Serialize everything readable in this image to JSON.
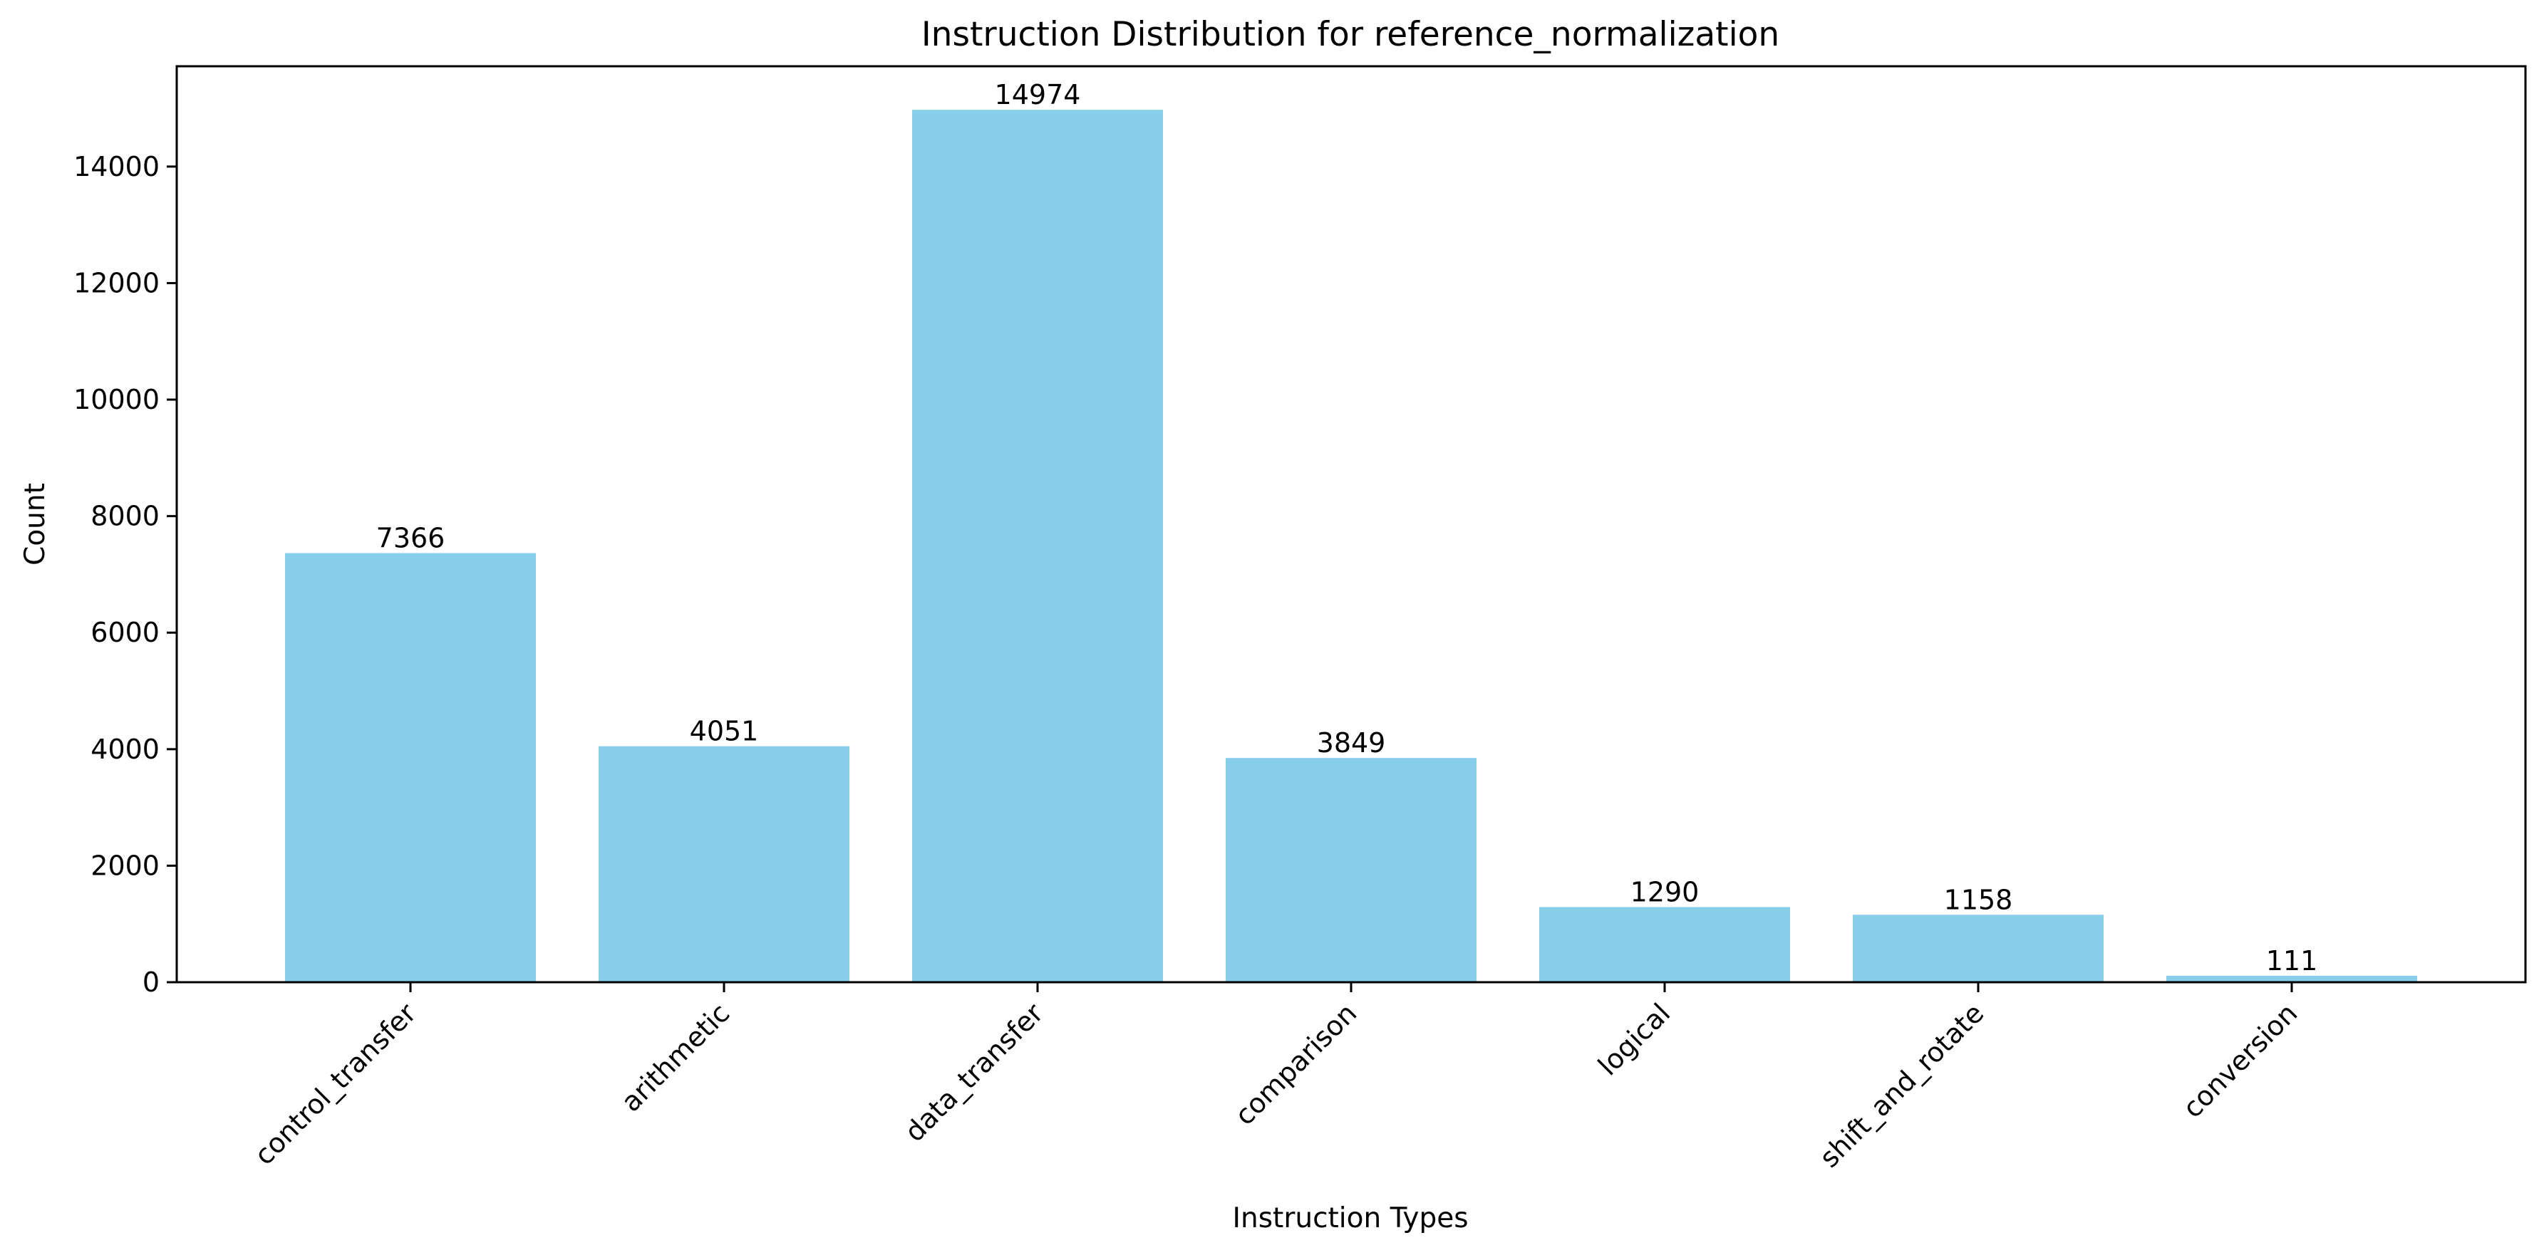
{
  "chart_data": {
    "type": "bar",
    "title": "Instruction Distribution for reference_normalization",
    "xlabel": "Instruction Types",
    "ylabel": "Count",
    "categories": [
      "control_transfer",
      "arithmetic",
      "data_transfer",
      "comparison",
      "logical",
      "shift_and_rotate",
      "conversion"
    ],
    "values": [
      7366,
      4051,
      14974,
      3849,
      1290,
      1158,
      111
    ],
    "data_labels": [
      "7366",
      "4051",
      "14974",
      "3849",
      "1290",
      "1158",
      "111"
    ],
    "ylim": [
      0,
      15722
    ],
    "yticks": [
      0,
      2000,
      4000,
      6000,
      8000,
      10000,
      12000,
      14000
    ],
    "ytick_labels": [
      "0",
      "2000",
      "4000",
      "6000",
      "8000",
      "10000",
      "12000",
      "14000"
    ],
    "bar_color": "#87ceeb",
    "grid": false,
    "legend": "none",
    "x_tick_rotation": "45 degrees"
  }
}
